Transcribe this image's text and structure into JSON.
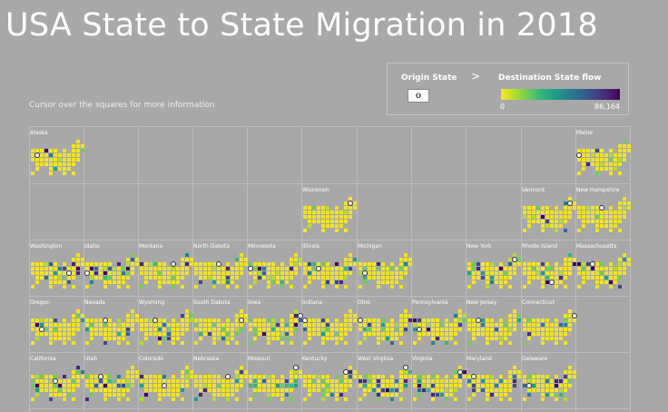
{
  "title": "USA State to State Migration in 2018",
  "subtitle": "Cursor over the squares for more information",
  "legend": {
    "origin_label": "Origin State",
    "arrow": ">",
    "destination_label": "Destination State flow",
    "origin_marker": "o",
    "min": "0",
    "max": "86,164"
  },
  "colors": {
    "background": "#a8a8a8",
    "base_square": "#f2e51d",
    "scale": [
      "#fde725",
      "#b5de2b",
      "#6ece58",
      "#35b779",
      "#1f9e89",
      "#26828e",
      "#31688e",
      "#3e4989",
      "#482878",
      "#440154"
    ]
  },
  "states": [
    {
      "name": "Alaska",
      "row": 0,
      "col": 0
    },
    {
      "name": "Maine",
      "row": 0,
      "col": 10
    },
    {
      "name": "Wisconsin",
      "row": 1,
      "col": 5
    },
    {
      "name": "Vermont",
      "row": 1,
      "col": 9
    },
    {
      "name": "New Hampshire",
      "row": 1,
      "col": 10
    },
    {
      "name": "Washington",
      "row": 2,
      "col": 0
    },
    {
      "name": "Idaho",
      "row": 2,
      "col": 1
    },
    {
      "name": "Montana",
      "row": 2,
      "col": 2
    },
    {
      "name": "North Dakota",
      "row": 2,
      "col": 3
    },
    {
      "name": "Minnesota",
      "row": 2,
      "col": 4
    },
    {
      "name": "Illinois",
      "row": 2,
      "col": 5
    },
    {
      "name": "Michigan",
      "row": 2,
      "col": 6
    },
    {
      "name": "New York",
      "row": 2,
      "col": 8
    },
    {
      "name": "Rhode Island",
      "row": 2,
      "col": 9
    },
    {
      "name": "Massachusetts",
      "row": 2,
      "col": 10
    },
    {
      "name": "Oregon",
      "row": 3,
      "col": 0
    },
    {
      "name": "Nevada",
      "row": 3,
      "col": 1
    },
    {
      "name": "Wyoming",
      "row": 3,
      "col": 2
    },
    {
      "name": "South Dakota",
      "row": 3,
      "col": 3
    },
    {
      "name": "Iowa",
      "row": 3,
      "col": 4
    },
    {
      "name": "Indiana",
      "row": 3,
      "col": 5
    },
    {
      "name": "Ohio",
      "row": 3,
      "col": 6
    },
    {
      "name": "Pennsylvania",
      "row": 3,
      "col": 7
    },
    {
      "name": "New Jersey",
      "row": 3,
      "col": 8
    },
    {
      "name": "Connecticut",
      "row": 3,
      "col": 9
    },
    {
      "name": "California",
      "row": 4,
      "col": 0
    },
    {
      "name": "Utah",
      "row": 4,
      "col": 1
    },
    {
      "name": "Colorado",
      "row": 4,
      "col": 2
    },
    {
      "name": "Nebraska",
      "row": 4,
      "col": 3
    },
    {
      "name": "Missouri",
      "row": 4,
      "col": 4
    },
    {
      "name": "Kentucky",
      "row": 4,
      "col": 5
    },
    {
      "name": "West Virginia",
      "row": 4,
      "col": 6
    },
    {
      "name": "Virginia",
      "row": 4,
      "col": 7
    },
    {
      "name": "Maryland",
      "row": 4,
      "col": 8
    },
    {
      "name": "Delaware",
      "row": 4,
      "col": 9
    }
  ]
}
